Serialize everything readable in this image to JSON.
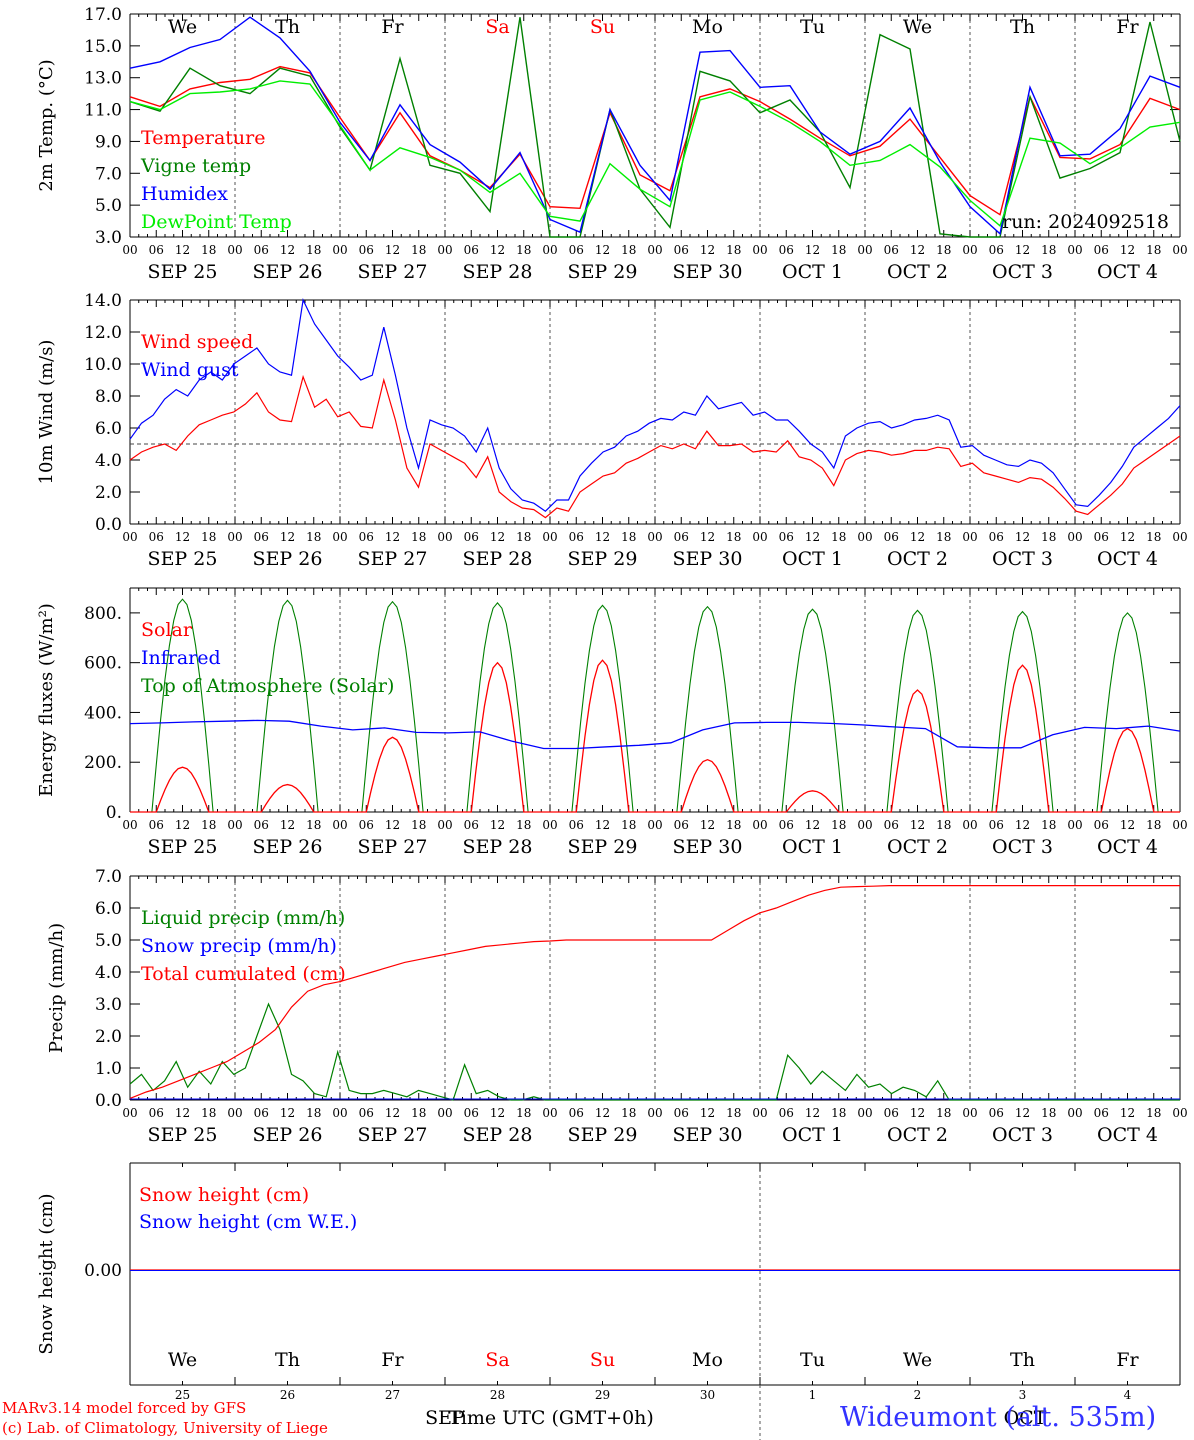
{
  "chart_data": [
    {
      "type": "line",
      "ylabel": "2m Temp. (°C)",
      "ylim": [
        3.0,
        17.0
      ],
      "yticks": [
        "3.0",
        "5.0",
        "7.0",
        "9.0",
        "11.0",
        "13.0",
        "15.0",
        "17.0"
      ],
      "legend": [
        "Temperature",
        "Vigne temp",
        "Humidex",
        "DewPoint Temp"
      ],
      "annotation": "run: 2024092518",
      "top_day_labels": [
        {
          "text": "We",
          "color": "#000000"
        },
        {
          "text": "Th",
          "color": "#000000"
        },
        {
          "text": "Fr",
          "color": "#000000"
        },
        {
          "text": "Sa",
          "color": "#ff0000"
        },
        {
          "text": "Su",
          "color": "#ff0000"
        },
        {
          "text": "Mo",
          "color": "#000000"
        },
        {
          "text": "Tu",
          "color": "#000000"
        },
        {
          "text": "We",
          "color": "#000000"
        },
        {
          "text": "Th",
          "color": "#000000"
        },
        {
          "text": "Fr",
          "color": "#000000"
        }
      ],
      "x_hours": [
        0,
        6,
        12,
        18,
        24,
        30,
        36,
        42,
        48,
        54,
        60,
        66,
        72,
        78,
        84,
        90,
        96,
        102,
        108,
        114,
        120,
        126,
        132,
        138,
        144,
        150,
        156,
        162,
        168,
        174,
        180,
        186,
        192,
        198,
        204,
        210,
        216,
        222,
        228,
        234,
        240
      ],
      "series": [
        {
          "name": "Temperature",
          "color": "#ff0000",
          "values": [
            11.8,
            11.2,
            12.3,
            12.7,
            12.9,
            13.7,
            13.3,
            10.5,
            7.8,
            10.8,
            8.1,
            7.2,
            6.1,
            8.2,
            4.9,
            4.8,
            10.8,
            6.9,
            5.9,
            11.8,
            12.3,
            11.5,
            10.4,
            9.2,
            8.1,
            8.7,
            10.4,
            8.0,
            5.6,
            4.4,
            11.8,
            8.0,
            7.9,
            8.8,
            11.7,
            11.0
          ]
        },
        {
          "name": "Vigne temp",
          "color": "#008000",
          "values": [
            11.5,
            10.9,
            13.6,
            12.5,
            12.0,
            13.6,
            13.1,
            9.9,
            7.2,
            14.2,
            7.5,
            7.0,
            4.6,
            16.8,
            2.5,
            3.0,
            11.0,
            6.0,
            3.6,
            13.4,
            12.8,
            10.8,
            11.6,
            9.6,
            6.1,
            15.7,
            14.8,
            3.2,
            1.0,
            2.8,
            11.8,
            6.7,
            7.3,
            8.3,
            16.5,
            9.0
          ]
        },
        {
          "name": "Humidex",
          "color": "#0000ff",
          "values": [
            13.6,
            14.0,
            14.9,
            15.4,
            16.8,
            15.5,
            13.4,
            10.2,
            7.8,
            11.3,
            8.8,
            7.7,
            6.0,
            8.3,
            4.1,
            3.3,
            11.0,
            7.5,
            5.3,
            14.6,
            14.7,
            12.4,
            12.5,
            9.6,
            8.2,
            9.0,
            11.1,
            7.7,
            4.9,
            3.2,
            12.4,
            8.1,
            8.2,
            9.8,
            13.1,
            12.4
          ]
        },
        {
          "name": "DewPoint Temp",
          "color": "#00ee00",
          "values": [
            11.5,
            11.0,
            12.0,
            12.1,
            12.3,
            12.8,
            12.6,
            10.0,
            7.2,
            8.6,
            8.0,
            7.2,
            5.8,
            7.0,
            4.3,
            4.0,
            7.6,
            6.0,
            4.9,
            11.6,
            12.1,
            11.2,
            10.2,
            9.0,
            7.5,
            7.8,
            8.8,
            7.4,
            5.3,
            3.7,
            9.2,
            8.9,
            7.6,
            8.6,
            9.9,
            10.2
          ]
        }
      ]
    },
    {
      "type": "line",
      "ylabel": "10m Wind (m/s)",
      "ylim": [
        0.0,
        14.0
      ],
      "yticks": [
        "0.0",
        "2.0",
        "4.0",
        "6.0",
        "8.0",
        "10.0",
        "12.0",
        "14.0"
      ],
      "reference_line": 5.0,
      "legend": [
        "Wind speed",
        "Wind gust"
      ],
      "series": [
        {
          "name": "Wind speed",
          "color": "#ff0000",
          "values": [
            4.0,
            4.5,
            4.8,
            5.0,
            4.6,
            5.5,
            6.2,
            6.5,
            6.8,
            7.0,
            7.5,
            8.2,
            7.0,
            6.5,
            6.4,
            9.2,
            7.3,
            7.8,
            6.7,
            7.0,
            6.1,
            6.0,
            9.0,
            6.5,
            3.5,
            2.3,
            5.0,
            4.6,
            4.2,
            3.8,
            2.9,
            4.2,
            2.0,
            1.4,
            1.0,
            0.9,
            0.4,
            1.0,
            0.8,
            2.0,
            2.5,
            3.0,
            3.2,
            3.8,
            4.1,
            4.5,
            4.9,
            4.7,
            5.0,
            4.7,
            5.8,
            4.9,
            4.9,
            5.0,
            4.5,
            4.6,
            4.5,
            5.2,
            4.2,
            4.0,
            3.5,
            2.4,
            4.0,
            4.4,
            4.6,
            4.5,
            4.3,
            4.4,
            4.6,
            4.6,
            4.8,
            4.7,
            3.6,
            3.8,
            3.2,
            3.0,
            2.8,
            2.6,
            2.9,
            2.8,
            2.3,
            1.6,
            0.8,
            0.6,
            1.2,
            1.8,
            2.5,
            3.5,
            4.0,
            4.5,
            5.0,
            5.5
          ]
        },
        {
          "name": "Wind gust",
          "color": "#0000ff",
          "values": [
            5.3,
            6.3,
            6.8,
            7.8,
            8.4,
            8.0,
            9.0,
            9.5,
            9.0,
            10.0,
            10.5,
            11.0,
            10.0,
            9.5,
            9.3,
            14.0,
            12.5,
            11.5,
            10.5,
            9.8,
            9.0,
            9.3,
            12.3,
            9.3,
            6.0,
            3.5,
            6.5,
            6.2,
            6.0,
            5.5,
            4.5,
            6.0,
            3.5,
            2.2,
            1.5,
            1.3,
            0.8,
            1.5,
            1.5,
            3.0,
            3.8,
            4.5,
            4.8,
            5.5,
            5.8,
            6.3,
            6.6,
            6.5,
            7.0,
            6.8,
            8.0,
            7.2,
            7.4,
            7.6,
            6.8,
            7.0,
            6.5,
            6.5,
            5.8,
            5.0,
            4.5,
            3.5,
            5.5,
            6.0,
            6.3,
            6.4,
            6.0,
            6.2,
            6.5,
            6.6,
            6.8,
            6.5,
            4.8,
            4.9,
            4.3,
            4.0,
            3.7,
            3.6,
            4.0,
            3.8,
            3.2,
            2.2,
            1.2,
            1.1,
            1.8,
            2.6,
            3.6,
            4.8,
            5.4,
            6.0,
            6.6,
            7.4
          ]
        }
      ]
    },
    {
      "type": "line",
      "ylabel": "Energy fluxes (W/m²)",
      "ylim": [
        0,
        900
      ],
      "yticks": [
        "0.",
        "200.",
        "400.",
        "600.",
        "800."
      ],
      "legend": [
        "Solar",
        "Infrared",
        "Top of Atmosphere (Solar)"
      ],
      "toa_peaks": [
        855,
        850,
        845,
        840,
        830,
        825,
        815,
        810,
        805,
        800
      ],
      "solar_peaks": [
        180,
        110,
        300,
        600,
        610,
        210,
        85,
        490,
        590,
        335
      ],
      "infrared_values": [
        355,
        358,
        362,
        365,
        368,
        365,
        345,
        330,
        338,
        320,
        318,
        322,
        285,
        255,
        255,
        262,
        268,
        278,
        330,
        358,
        360,
        360,
        356,
        350,
        342,
        335,
        262,
        258,
        258,
        310,
        340,
        335,
        345,
        325
      ]
    },
    {
      "type": "line",
      "ylabel": "Precip (mm/h)",
      "ylim": [
        0.0,
        7.0
      ],
      "yticks": [
        "0.0",
        "1.0",
        "2.0",
        "3.0",
        "4.0",
        "5.0",
        "6.0",
        "7.0"
      ],
      "legend": [
        "Liquid precip (mm/h)",
        "Snow precip (mm/h)",
        "Total cumulated (cm)"
      ],
      "series": [
        {
          "name": "Liquid precip (mm/h)",
          "color": "#008000",
          "values": [
            0.5,
            0.8,
            0.3,
            0.6,
            1.2,
            0.4,
            0.9,
            0.5,
            1.2,
            0.8,
            1.0,
            2.0,
            3.0,
            2.2,
            0.8,
            0.6,
            0.2,
            0.1,
            1.5,
            0.3,
            0.2,
            0.2,
            0.3,
            0.2,
            0.1,
            0.3,
            0.2,
            0.1,
            0.0,
            1.1,
            0.2,
            0.3,
            0.1,
            0.0,
            0.0,
            0.1,
            0.0,
            0.0,
            0.0,
            0.0,
            0.0,
            0.0,
            0.0,
            0.0,
            0.0,
            0.0,
            0.0,
            0.0,
            0.0,
            0.0,
            0.0,
            0.0,
            0.0,
            0.0,
            0.0,
            0.0,
            0.0,
            1.4,
            1.0,
            0.5,
            0.9,
            0.6,
            0.3,
            0.8,
            0.4,
            0.5,
            0.2,
            0.4,
            0.3,
            0.1,
            0.6,
            0.0,
            0.0,
            0.0,
            0.0,
            0.0,
            0.0,
            0.0,
            0.0,
            0.0,
            0.0,
            0.0,
            0.0,
            0.0,
            0.0,
            0.0,
            0.0,
            0.0,
            0.0,
            0.0,
            0.0,
            0.0
          ]
        },
        {
          "name": "Total cumulated (cm)",
          "color": "#ff0000",
          "values": [
            0.05,
            0.25,
            0.4,
            0.6,
            0.8,
            1.0,
            1.2,
            1.5,
            1.8,
            2.2,
            2.9,
            3.4,
            3.6,
            3.7,
            3.85,
            4.0,
            4.15,
            4.3,
            4.4,
            4.5,
            4.6,
            4.7,
            4.8,
            4.85,
            4.9,
            4.95,
            4.97,
            5.0,
            5.0,
            5.0,
            5.0,
            5.0,
            5.0,
            5.0,
            5.0,
            5.0,
            5.0,
            5.3,
            5.6,
            5.85,
            6.0,
            6.2,
            6.4,
            6.55,
            6.65,
            6.67,
            6.68,
            6.7,
            6.7,
            6.7,
            6.7,
            6.7,
            6.7,
            6.7,
            6.7,
            6.7,
            6.7,
            6.7,
            6.7,
            6.7,
            6.7,
            6.7,
            6.7,
            6.7,
            6.7,
            6.7
          ]
        }
      ]
    },
    {
      "type": "line",
      "ylabel": "Snow height (cm)",
      "ytick": "0.00",
      "legend": [
        "Snow height (cm)",
        "Snow height (cm W.E.)"
      ],
      "series": [
        {
          "name": "Snow height (cm)",
          "color": "#ff0000",
          "values": [
            0,
            0
          ]
        },
        {
          "name": "Snow height (cm W.E.)",
          "color": "#0000ff",
          "values": [
            0,
            0
          ]
        }
      ],
      "bottom_day_labels": [
        {
          "text": "We",
          "color": "#000000"
        },
        {
          "text": "Th",
          "color": "#000000"
        },
        {
          "text": "Fr",
          "color": "#000000"
        },
        {
          "text": "Sa",
          "color": "#ff0000"
        },
        {
          "text": "Su",
          "color": "#ff0000"
        },
        {
          "text": "Mo",
          "color": "#000000"
        },
        {
          "text": "Tu",
          "color": "#000000"
        },
        {
          "text": "We",
          "color": "#000000"
        },
        {
          "text": "Th",
          "color": "#000000"
        },
        {
          "text": "Fr",
          "color": "#000000"
        }
      ],
      "bottom_day_numbers": [
        "25",
        "26",
        "27",
        "28",
        "29",
        "30",
        "1",
        "2",
        "3",
        "4"
      ],
      "month_labels": [
        "SEP",
        "OCT"
      ],
      "xlabel": "Time UTC (GMT+0h)"
    }
  ],
  "x_axis": {
    "hour_ticks": [
      "00",
      "06",
      "12",
      "18"
    ],
    "date_labels": [
      "SEP 25",
      "SEP 26",
      "SEP 27",
      "SEP 28",
      "SEP 29",
      "SEP 30",
      "OCT  1",
      "OCT  2",
      "OCT  3",
      "OCT  4"
    ]
  },
  "footer": {
    "credit_line1": "MARv3.14 model forced by GFS",
    "credit_line2": "(c) Lab. of Climatology, University of Liege",
    "station": "Wideumont (alt. 535m)"
  }
}
